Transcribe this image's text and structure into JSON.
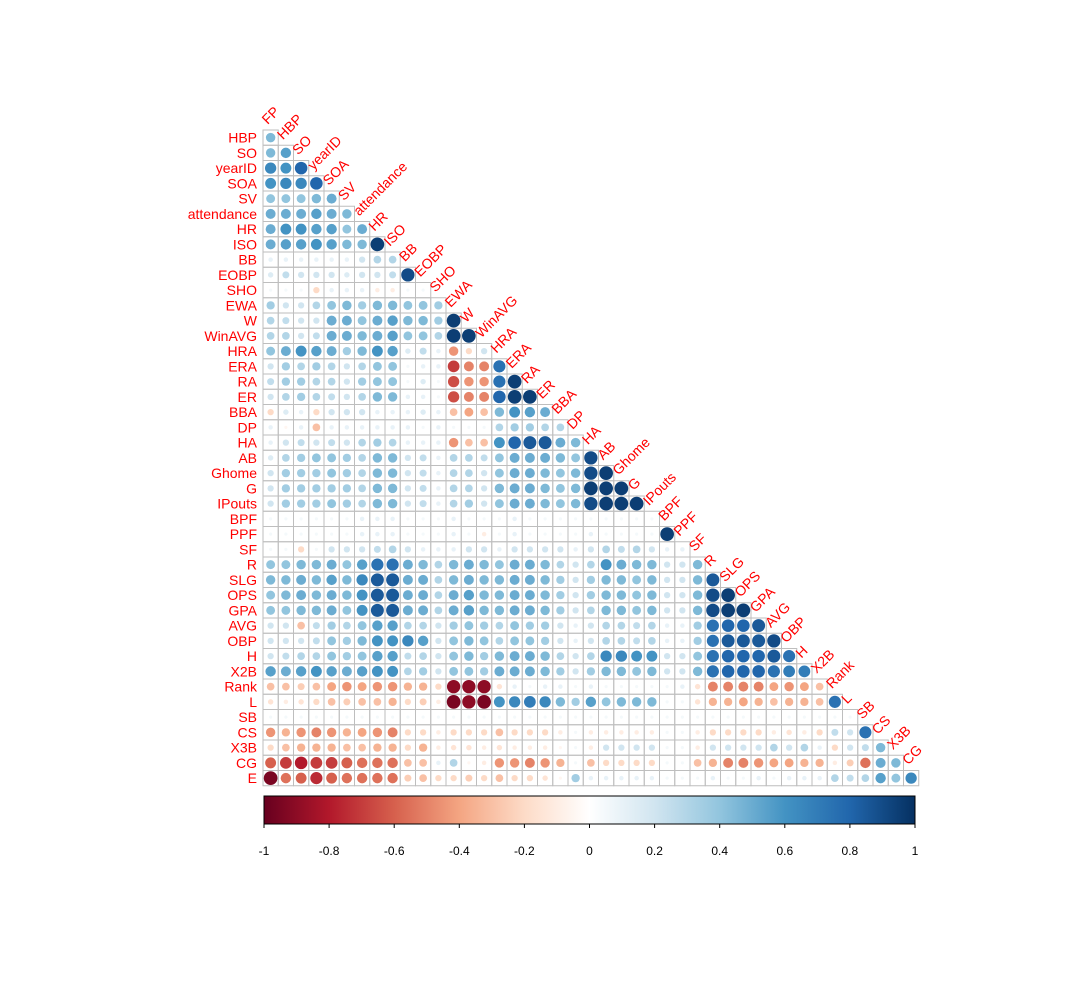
{
  "chart_data": {
    "type": "heatmap",
    "subtype": "correlation matrix (lower triangle, circles)",
    "title": "",
    "column_labels": [
      "FP",
      "HBP",
      "SO",
      "yearID",
      "SOA",
      "SV",
      "attendance",
      "HR",
      "ISO",
      "BB",
      "EOBP",
      "SHO",
      "EWA",
      "W",
      "WinAVG",
      "HRA",
      "ERA",
      "RA",
      "ER",
      "BBA",
      "DP",
      "HA",
      "AB",
      "Ghome",
      "G",
      "IPouts",
      "BPF",
      "PPF",
      "SF",
      "R",
      "SLG",
      "OPS",
      "GPA",
      "AVG",
      "OBP",
      "H",
      "X2B",
      "Rank",
      "L",
      "SB",
      "CS",
      "X3B",
      "CG"
    ],
    "row_labels": [
      "HBP",
      "SO",
      "yearID",
      "SOA",
      "SV",
      "attendance",
      "HR",
      "ISO",
      "BB",
      "EOBP",
      "SHO",
      "EWA",
      "W",
      "WinAVG",
      "HRA",
      "ERA",
      "RA",
      "ER",
      "BBA",
      "DP",
      "HA",
      "AB",
      "Ghome",
      "G",
      "IPouts",
      "BPF",
      "PPF",
      "SF",
      "R",
      "SLG",
      "OPS",
      "GPA",
      "AVG",
      "OBP",
      "H",
      "X2B",
      "Rank",
      "L",
      "SB",
      "CS",
      "X3B",
      "CG",
      "E"
    ],
    "values": [
      [
        0.45
      ],
      [
        0.45,
        0.55
      ],
      [
        0.65,
        0.6,
        0.8
      ],
      [
        0.6,
        0.65,
        0.65,
        0.8
      ],
      [
        0.4,
        0.4,
        0.4,
        0.45,
        0.5
      ],
      [
        0.5,
        0.5,
        0.5,
        0.55,
        0.5,
        0.45
      ],
      [
        0.5,
        0.6,
        0.6,
        0.55,
        0.55,
        0.4,
        0.5
      ],
      [
        0.5,
        0.55,
        0.55,
        0.6,
        0.55,
        0.45,
        0.45,
        0.95
      ],
      [
        0.1,
        0.1,
        0.1,
        0.1,
        0.1,
        0.1,
        0.2,
        0.3,
        0.3
      ],
      [
        0.15,
        0.25,
        0.2,
        0.2,
        0.2,
        0.15,
        0.2,
        0.2,
        0.25,
        0.9
      ],
      [
        0.05,
        0.05,
        0.05,
        -0.2,
        0.1,
        0.1,
        0.1,
        -0.1,
        -0.1,
        0.05,
        0.05
      ],
      [
        0.35,
        0.2,
        0.2,
        0.3,
        0.4,
        0.45,
        0.35,
        0.45,
        0.45,
        0.4,
        0.4,
        0.35
      ],
      [
        0.3,
        0.25,
        0.2,
        0.2,
        0.5,
        0.5,
        0.4,
        0.5,
        0.55,
        0.45,
        0.45,
        0.35,
        0.95
      ],
      [
        0.3,
        0.3,
        0.2,
        0.25,
        0.5,
        0.5,
        0.45,
        0.5,
        0.55,
        0.4,
        0.4,
        0.3,
        0.95,
        0.95
      ],
      [
        0.4,
        0.5,
        0.6,
        0.55,
        0.5,
        0.35,
        0.45,
        0.6,
        0.55,
        0.15,
        0.25,
        0.1,
        -0.45,
        -0.2,
        0.2
      ],
      [
        0.2,
        0.35,
        0.3,
        0.35,
        0.3,
        0.2,
        0.3,
        0.4,
        0.4,
        0.05,
        0.1,
        0.1,
        -0.7,
        -0.5,
        -0.5,
        0.75
      ],
      [
        0.25,
        0.35,
        0.35,
        0.3,
        0.3,
        0.2,
        0.35,
        0.4,
        0.4,
        0.05,
        0.15,
        0.05,
        -0.65,
        -0.45,
        -0.45,
        0.75,
        0.95
      ],
      [
        0.2,
        0.3,
        0.35,
        0.3,
        0.25,
        0.2,
        0.3,
        0.45,
        0.45,
        0.1,
        0.1,
        0.05,
        -0.65,
        -0.5,
        -0.5,
        0.8,
        0.95,
        0.95
      ],
      [
        -0.2,
        0.15,
        0.1,
        -0.2,
        0.2,
        0.2,
        0.2,
        0.1,
        0.1,
        0.1,
        0.15,
        0.1,
        -0.3,
        -0.4,
        -0.3,
        0.45,
        0.6,
        0.55,
        0.5
      ],
      [
        0.1,
        -0.05,
        0.1,
        -0.3,
        0.1,
        0.1,
        0.1,
        0.1,
        0.1,
        0.1,
        0.05,
        0.1,
        0.05,
        0.05,
        0.05,
        0.3,
        0.35,
        0.35,
        0.3,
        0.3
      ],
      [
        0.1,
        0.2,
        0.25,
        0.2,
        0.25,
        0.2,
        0.3,
        0.35,
        0.3,
        0.1,
        0.1,
        0.1,
        -0.45,
        -0.3,
        -0.3,
        0.6,
        0.8,
        0.85,
        0.85,
        0.5,
        0.45
      ],
      [
        0.15,
        0.3,
        0.35,
        0.4,
        0.4,
        0.35,
        0.3,
        0.45,
        0.45,
        0.2,
        0.25,
        0.1,
        0.3,
        0.3,
        0.25,
        0.4,
        0.5,
        0.5,
        0.5,
        0.45,
        0.4,
        0.9
      ],
      [
        0.2,
        0.35,
        0.35,
        0.35,
        0.4,
        0.35,
        0.3,
        0.45,
        0.45,
        0.2,
        0.25,
        0.1,
        0.3,
        0.3,
        0.2,
        0.4,
        0.5,
        0.5,
        0.45,
        0.4,
        0.45,
        0.9,
        0.95
      ],
      [
        0.2,
        0.35,
        0.35,
        0.35,
        0.35,
        0.35,
        0.3,
        0.45,
        0.45,
        0.2,
        0.25,
        0.1,
        0.3,
        0.3,
        0.2,
        0.45,
        0.5,
        0.5,
        0.45,
        0.4,
        0.45,
        0.95,
        0.95,
        0.95
      ],
      [
        0.2,
        0.35,
        0.35,
        0.35,
        0.4,
        0.35,
        0.3,
        0.45,
        0.45,
        0.2,
        0.25,
        0.1,
        0.3,
        0.35,
        0.2,
        0.4,
        0.5,
        0.5,
        0.45,
        0.4,
        0.45,
        0.9,
        0.95,
        0.95,
        0.95
      ],
      [
        0.05,
        0.05,
        0.05,
        0.05,
        0.05,
        0.05,
        0.1,
        0.1,
        0.1,
        0.05,
        0.05,
        0.05,
        0.1,
        0.05,
        0.05,
        0.05,
        0.1,
        0.05,
        0.05,
        0.05,
        0.05,
        0.05,
        0.05,
        0.05,
        0.05,
        0.05
      ],
      [
        0.05,
        0.05,
        0.05,
        0.05,
        0.05,
        0.05,
        0.1,
        0.1,
        0.1,
        0.05,
        0.05,
        0.05,
        0.1,
        0.05,
        -0.1,
        0.05,
        0.1,
        0.05,
        0.05,
        0.05,
        0.05,
        0.1,
        0.05,
        0.05,
        0.05,
        0.05,
        0.95
      ],
      [
        0.05,
        0.05,
        -0.2,
        0.05,
        0.2,
        0.2,
        0.2,
        0.25,
        0.3,
        0.2,
        0.1,
        0.1,
        0.1,
        0.2,
        0.2,
        0.1,
        0.2,
        0.2,
        0.2,
        0.2,
        0.1,
        0.2,
        0.3,
        0.25,
        0.3,
        0.2,
        0.1,
        0.1
      ],
      [
        0.4,
        0.4,
        0.45,
        0.45,
        0.5,
        0.4,
        0.55,
        0.75,
        0.75,
        0.5,
        0.45,
        0.3,
        0.45,
        0.5,
        0.45,
        0.4,
        0.5,
        0.5,
        0.45,
        0.3,
        0.2,
        0.3,
        0.6,
        0.5,
        0.45,
        0.45,
        0.2,
        0.2,
        0.45
      ],
      [
        0.45,
        0.45,
        0.5,
        0.45,
        0.55,
        0.45,
        0.65,
        0.85,
        0.85,
        0.5,
        0.5,
        0.3,
        0.45,
        0.5,
        0.45,
        0.45,
        0.5,
        0.5,
        0.45,
        0.35,
        0.2,
        0.35,
        0.45,
        0.45,
        0.4,
        0.45,
        0.2,
        0.2,
        0.45,
        0.85
      ],
      [
        0.4,
        0.45,
        0.5,
        0.45,
        0.5,
        0.45,
        0.6,
        0.85,
        0.85,
        0.5,
        0.5,
        0.3,
        0.5,
        0.55,
        0.45,
        0.45,
        0.5,
        0.5,
        0.45,
        0.35,
        0.2,
        0.35,
        0.45,
        0.45,
        0.4,
        0.45,
        0.2,
        0.2,
        0.45,
        0.9,
        0.95
      ],
      [
        0.4,
        0.4,
        0.45,
        0.45,
        0.5,
        0.4,
        0.6,
        0.85,
        0.85,
        0.5,
        0.5,
        0.3,
        0.5,
        0.55,
        0.45,
        0.45,
        0.5,
        0.5,
        0.45,
        0.35,
        0.2,
        0.3,
        0.45,
        0.45,
        0.4,
        0.45,
        0.2,
        0.2,
        0.45,
        0.9,
        0.95,
        0.95
      ],
      [
        0.2,
        0.2,
        -0.3,
        0.25,
        0.35,
        0.3,
        0.4,
        0.55,
        0.55,
        0.3,
        0.3,
        0.2,
        0.35,
        0.4,
        0.35,
        0.3,
        0.4,
        0.35,
        0.35,
        0.2,
        0.1,
        0.2,
        0.3,
        0.3,
        0.25,
        0.3,
        0.1,
        0.1,
        0.35,
        0.75,
        0.8,
        0.8,
        0.85
      ],
      [
        0.2,
        0.2,
        0.2,
        0.25,
        0.4,
        0.35,
        0.45,
        0.6,
        0.6,
        0.65,
        0.55,
        0.2,
        0.4,
        0.45,
        0.4,
        0.3,
        0.4,
        0.4,
        0.35,
        0.2,
        0.1,
        0.2,
        0.3,
        0.3,
        0.25,
        0.3,
        0.1,
        0.1,
        0.35,
        0.75,
        0.85,
        0.85,
        0.85,
        0.9
      ],
      [
        0.2,
        0.25,
        0.3,
        0.3,
        0.4,
        0.35,
        0.4,
        0.55,
        0.55,
        0.25,
        0.3,
        0.2,
        0.4,
        0.45,
        0.35,
        0.45,
        0.5,
        0.5,
        0.45,
        0.3,
        0.2,
        0.3,
        0.65,
        0.65,
        0.6,
        0.6,
        0.2,
        0.2,
        0.4,
        0.75,
        0.8,
        0.8,
        0.8,
        0.85,
        0.75
      ],
      [
        0.55,
        0.5,
        0.55,
        0.6,
        0.55,
        0.5,
        0.55,
        0.6,
        0.6,
        0.3,
        0.35,
        0.2,
        0.4,
        0.4,
        0.35,
        0.5,
        0.5,
        0.5,
        0.45,
        0.35,
        0.2,
        0.35,
        0.45,
        0.45,
        0.4,
        0.45,
        0.2,
        0.2,
        0.45,
        0.75,
        0.8,
        0.8,
        0.8,
        0.75,
        0.7,
        0.7
      ],
      [
        -0.3,
        -0.3,
        -0.25,
        -0.3,
        -0.4,
        -0.45,
        -0.4,
        -0.45,
        -0.45,
        -0.35,
        -0.35,
        -0.2,
        -0.9,
        -0.9,
        -0.9,
        -0.15,
        0.1,
        0.05,
        0.1,
        0.1,
        0.05,
        0.1,
        0.05,
        0.05,
        0.05,
        0.05,
        0.05,
        0.1,
        -0.15,
        -0.5,
        -0.5,
        -0.5,
        -0.5,
        -0.4,
        -0.45,
        -0.4,
        -0.3
      ],
      [
        -0.15,
        -0.1,
        -0.15,
        -0.2,
        -0.3,
        -0.25,
        -0.3,
        -0.3,
        -0.35,
        -0.2,
        -0.25,
        -0.1,
        -0.95,
        -0.9,
        -0.95,
        0.6,
        0.65,
        0.7,
        0.65,
        0.45,
        0.35,
        0.55,
        0.4,
        0.45,
        0.45,
        0.45,
        0.05,
        0.05,
        -0.15,
        -0.35,
        -0.35,
        -0.4,
        -0.35,
        -0.3,
        -0.35,
        -0.35,
        -0.3,
        0.75
      ],
      [
        0.05,
        0.05,
        0.05,
        0.05,
        0.05,
        0.05,
        0.05,
        0.05,
        0.05,
        0.05,
        0.05,
        0.05,
        0.05,
        0.05,
        0.05,
        0.05,
        0.05,
        0.05,
        0.05,
        0.05,
        0.05,
        0.05,
        0.05,
        0.05,
        0.05,
        0.05,
        0.05,
        0.05,
        0.05,
        0.05,
        0.05,
        0.05,
        0.05,
        0.05,
        0.05,
        0.05,
        0.05,
        0.05,
        0.05
      ],
      [
        -0.45,
        -0.35,
        -0.45,
        -0.5,
        -0.45,
        -0.35,
        -0.4,
        -0.45,
        -0.5,
        -0.2,
        -0.2,
        -0.1,
        -0.2,
        -0.2,
        -0.2,
        -0.3,
        -0.2,
        -0.2,
        -0.2,
        -0.1,
        0.05,
        -0.1,
        -0.1,
        -0.1,
        -0.1,
        -0.1,
        0.05,
        0.05,
        -0.1,
        -0.2,
        -0.2,
        -0.2,
        -0.2,
        -0.1,
        -0.15,
        -0.1,
        -0.2,
        0.25,
        0.2,
        0.75
      ],
      [
        -0.2,
        -0.3,
        -0.35,
        -0.35,
        -0.35,
        -0.3,
        -0.3,
        -0.35,
        -0.35,
        -0.2,
        -0.35,
        -0.1,
        -0.15,
        -0.15,
        -0.1,
        -0.15,
        -0.1,
        -0.1,
        -0.1,
        -0.05,
        0.05,
        -0.1,
        0.2,
        0.2,
        0.2,
        0.2,
        0.05,
        0.05,
        -0.1,
        0.2,
        0.2,
        0.2,
        0.2,
        0.3,
        0.2,
        0.3,
        0.1,
        -0.2,
        0.2,
        0.25,
        0.45
      ],
      [
        -0.6,
        -0.7,
        -0.8,
        -0.7,
        -0.7,
        -0.6,
        -0.55,
        -0.55,
        -0.55,
        -0.3,
        -0.3,
        0.1,
        0.3,
        -0.05,
        -0.1,
        -0.45,
        -0.45,
        -0.5,
        -0.45,
        -0.35,
        0.05,
        -0.3,
        -0.2,
        -0.2,
        -0.2,
        -0.2,
        0.05,
        0.05,
        -0.3,
        -0.35,
        -0.5,
        -0.5,
        -0.45,
        -0.4,
        -0.4,
        -0.35,
        -0.35,
        -0.1,
        -0.25,
        -0.55,
        0.5,
        0.45
      ],
      [
        -0.95,
        -0.55,
        -0.6,
        -0.75,
        -0.6,
        -0.55,
        -0.55,
        -0.55,
        -0.55,
        -0.25,
        -0.3,
        -0.2,
        -0.2,
        -0.25,
        -0.2,
        -0.3,
        -0.2,
        -0.2,
        -0.15,
        -0.05,
        0.35,
        0.1,
        0.1,
        0.1,
        0.1,
        0.1,
        0.05,
        0.05,
        0.05,
        0.1,
        0.05,
        0.05,
        0.1,
        0.05,
        0.1,
        0.1,
        0.1,
        0.3,
        0.25,
        0.3,
        0.55,
        0.4,
        0.65
      ]
    ],
    "colorbar": {
      "tick_labels": [
        "-1",
        "-0.8",
        "-0.6",
        "-0.4",
        "-0.2",
        "0",
        "0.2",
        "0.4",
        "0.6",
        "0.8",
        "1"
      ],
      "range": [
        -1,
        1
      ],
      "colors": [
        "#67001F",
        "#B2182B",
        "#D6604D",
        "#F4A582",
        "#FDDBC7",
        "#FFFFFF",
        "#D1E5F0",
        "#92C5DE",
        "#4393C3",
        "#2166AC",
        "#053061"
      ]
    },
    "label_color": "#FF0000"
  }
}
